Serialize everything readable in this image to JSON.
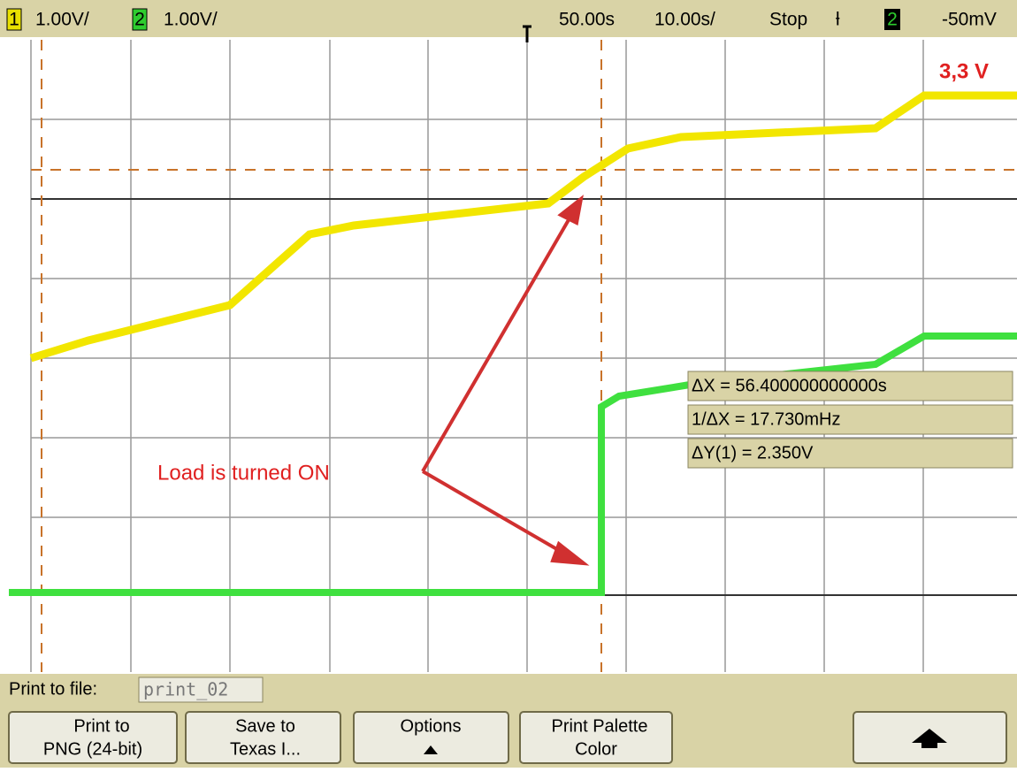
{
  "header": {
    "ch1_label": "1",
    "ch1_scale": "1.00V/",
    "ch2_label": "2",
    "ch2_scale": "1.00V/",
    "time_position": "50.00s",
    "time_scale": "10.00s/",
    "run_state": "Stop",
    "trigger_source": "2",
    "trigger_level": "-50mV"
  },
  "annotations": {
    "voltage": "3,3 V",
    "load": "Load is turned ON"
  },
  "measurements": [
    "ΔX = 56.400000000000s",
    "1/ΔX = 17.730mHz",
    "ΔY(1) = 2.350V"
  ],
  "print_panel": {
    "label": "Print to file:",
    "file_name": "print_02"
  },
  "softkeys": [
    {
      "line1": "Print to",
      "line2": "PNG (24-bit)"
    },
    {
      "line1": "Save to",
      "line2": "Texas I..."
    },
    {
      "line1": "Options"
    },
    {
      "line1": "Print Palette",
      "line2": "Color"
    }
  ]
}
